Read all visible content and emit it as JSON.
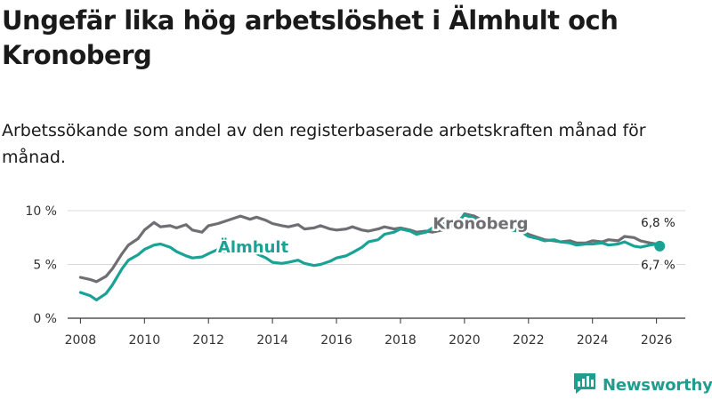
{
  "title": "Ungefär lika hög arbetslöshet i Älmhult och Kronoberg",
  "subtitle": "Arbetssökande som andel av den registerbaserade arbetskraften månad för månad.",
  "brand": {
    "name": "Newsworthy",
    "icon": "newsworthy-logo-icon"
  },
  "colors": {
    "almhult": "#1aa394",
    "kronoberg": "#6e6e73",
    "grid": "#d8d8d8",
    "axis": "#333333"
  },
  "chart_data": {
    "type": "line",
    "title": "Ungefär lika hög arbetslöshet i Älmhult och Kronoberg",
    "subtitle": "Arbetssökande som andel av den registerbaserade arbetskraften månad för månad.",
    "xlim": [
      2007.6,
      2026.9
    ],
    "ylim": [
      0,
      10
    ],
    "x_ticks": [
      2008,
      2010,
      2012,
      2014,
      2016,
      2018,
      2020,
      2022,
      2024,
      2026
    ],
    "x_tick_labels": [
      "2008",
      "2010",
      "2012",
      "2014",
      "2016",
      "2018",
      "2020",
      "2022",
      "2024",
      "2026"
    ],
    "y_ticks": [
      0,
      5,
      10
    ],
    "y_tick_labels": [
      "0 %",
      "5 %",
      "10 %"
    ],
    "grid": true,
    "series": [
      {
        "name": "Kronoberg",
        "color": "#6e6e73",
        "x": [
          2008.0,
          2008.3,
          2008.5,
          2008.8,
          2009.0,
          2009.3,
          2009.5,
          2009.8,
          2010.0,
          2010.3,
          2010.5,
          2010.8,
          2011.0,
          2011.3,
          2011.5,
          2011.8,
          2012.0,
          2012.3,
          2012.5,
          2012.8,
          2013.0,
          2013.3,
          2013.5,
          2013.8,
          2014.0,
          2014.3,
          2014.5,
          2014.8,
          2015.0,
          2015.3,
          2015.5,
          2015.8,
          2016.0,
          2016.3,
          2016.5,
          2016.8,
          2017.0,
          2017.3,
          2017.5,
          2017.8,
          2018.0,
          2018.3,
          2018.5,
          2018.8,
          2019.0,
          2019.3,
          2019.5,
          2019.8,
          2020.0,
          2020.3,
          2020.5,
          2020.8,
          2021.0,
          2021.3,
          2021.5,
          2021.8,
          2022.0,
          2022.3,
          2022.5,
          2022.8,
          2023.0,
          2023.3,
          2023.5,
          2023.8,
          2024.0,
          2024.3,
          2024.5,
          2024.8,
          2025.0,
          2025.3,
          2025.5,
          2025.8,
          2026.0,
          2026.1
        ],
        "values": [
          3.8,
          3.6,
          3.4,
          3.9,
          4.6,
          6.0,
          6.8,
          7.4,
          8.2,
          8.9,
          8.5,
          8.6,
          8.4,
          8.7,
          8.2,
          8.0,
          8.6,
          8.8,
          9.0,
          9.3,
          9.5,
          9.2,
          9.4,
          9.1,
          8.8,
          8.6,
          8.5,
          8.7,
          8.3,
          8.4,
          8.6,
          8.3,
          8.2,
          8.3,
          8.5,
          8.2,
          8.1,
          8.3,
          8.5,
          8.3,
          8.4,
          8.2,
          8.0,
          8.1,
          8.0,
          8.2,
          8.5,
          8.8,
          9.7,
          9.5,
          9.2,
          9.0,
          8.9,
          8.7,
          8.3,
          8.1,
          7.8,
          7.5,
          7.3,
          7.2,
          7.1,
          7.2,
          7.0,
          7.0,
          7.2,
          7.1,
          7.3,
          7.2,
          7.6,
          7.5,
          7.2,
          7.0,
          6.9,
          6.8
        ]
      },
      {
        "name": "Älmhult",
        "color": "#1aa394",
        "x": [
          2008.0,
          2008.3,
          2008.5,
          2008.8,
          2009.0,
          2009.3,
          2009.5,
          2009.8,
          2010.0,
          2010.3,
          2010.5,
          2010.8,
          2011.0,
          2011.3,
          2011.5,
          2011.8,
          2012.0,
          2012.3,
          2012.5,
          2012.8,
          2013.0,
          2013.3,
          2013.5,
          2013.8,
          2014.0,
          2014.3,
          2014.5,
          2014.8,
          2015.0,
          2015.3,
          2015.5,
          2015.8,
          2016.0,
          2016.3,
          2016.5,
          2016.8,
          2017.0,
          2017.3,
          2017.5,
          2017.8,
          2018.0,
          2018.3,
          2018.5,
          2018.8,
          2019.0,
          2019.3,
          2019.5,
          2019.8,
          2020.0,
          2020.3,
          2020.5,
          2020.8,
          2021.0,
          2021.3,
          2021.5,
          2021.8,
          2022.0,
          2022.3,
          2022.5,
          2022.8,
          2023.0,
          2023.3,
          2023.5,
          2023.8,
          2024.0,
          2024.3,
          2024.5,
          2024.8,
          2025.0,
          2025.3,
          2025.5,
          2025.8,
          2026.0,
          2026.1
        ],
        "values": [
          2.4,
          2.1,
          1.7,
          2.3,
          3.1,
          4.6,
          5.4,
          5.9,
          6.4,
          6.8,
          6.9,
          6.6,
          6.2,
          5.8,
          5.6,
          5.7,
          6.0,
          6.4,
          6.2,
          6.6,
          6.9,
          6.4,
          6.0,
          5.6,
          5.2,
          5.1,
          5.2,
          5.4,
          5.1,
          4.9,
          5.0,
          5.3,
          5.6,
          5.8,
          6.1,
          6.6,
          7.1,
          7.3,
          7.8,
          8.0,
          8.3,
          8.1,
          7.8,
          8.0,
          8.4,
          8.7,
          8.9,
          9.0,
          9.6,
          9.3,
          9.0,
          8.8,
          8.6,
          8.4,
          8.2,
          8.0,
          7.6,
          7.4,
          7.2,
          7.3,
          7.1,
          7.0,
          6.8,
          6.9,
          6.9,
          7.0,
          6.8,
          6.9,
          7.1,
          6.7,
          6.6,
          6.8,
          6.9,
          6.7
        ]
      }
    ],
    "annotations": [
      {
        "text": "Kronoberg",
        "series": "Kronoberg"
      },
      {
        "text": "Älmhult",
        "series": "Älmhult"
      },
      {
        "text": "6,8 %",
        "series": "Kronoberg"
      },
      {
        "text": "6,7 %",
        "series": "Älmhult"
      }
    ]
  }
}
